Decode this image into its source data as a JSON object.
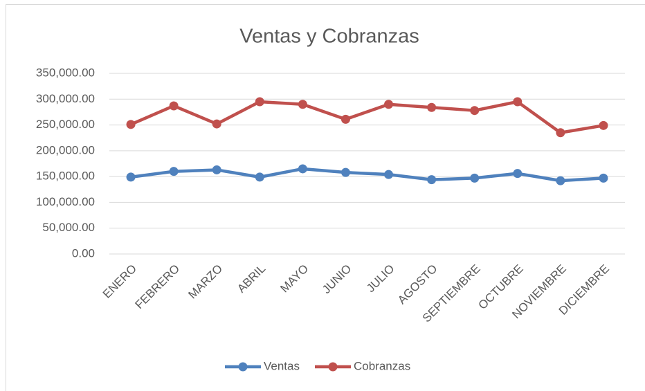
{
  "chart_data": {
    "type": "line",
    "title": "Ventas y Cobranzas",
    "categories": [
      "ENERO",
      "FEBRERO",
      "MARZO",
      "ABRIL",
      "MAYO",
      "JUNIO",
      "JULIO",
      "AGOSTO",
      "SEPTIEMBRE",
      "OCTUBRE",
      "NOVIEMBRE",
      "DICIEMBRE"
    ],
    "series": [
      {
        "name": "Ventas",
        "color": "#4f81bd",
        "values": [
          149000,
          160000,
          163000,
          149000,
          165000,
          158000,
          154000,
          144000,
          147000,
          156000,
          142000,
          147000
        ]
      },
      {
        "name": "Cobranzas",
        "color": "#c0504d",
        "values": [
          251000,
          287000,
          252000,
          295000,
          290000,
          261000,
          290000,
          284000,
          278000,
          295000,
          235000,
          249000
        ]
      }
    ],
    "ylim": [
      0,
      350000
    ],
    "yticks": [
      {
        "value": 0,
        "label": "0.00"
      },
      {
        "value": 50000,
        "label": "50,000.00"
      },
      {
        "value": 100000,
        "label": "100,000.00"
      },
      {
        "value": 150000,
        "label": "150,000.00"
      },
      {
        "value": 200000,
        "label": "200,000.00"
      },
      {
        "value": 250000,
        "label": "250,000.00"
      },
      {
        "value": 300000,
        "label": "300,000.00"
      },
      {
        "value": 350000,
        "label": "350,000.00"
      }
    ],
    "grid": true,
    "legend": "bottom"
  }
}
